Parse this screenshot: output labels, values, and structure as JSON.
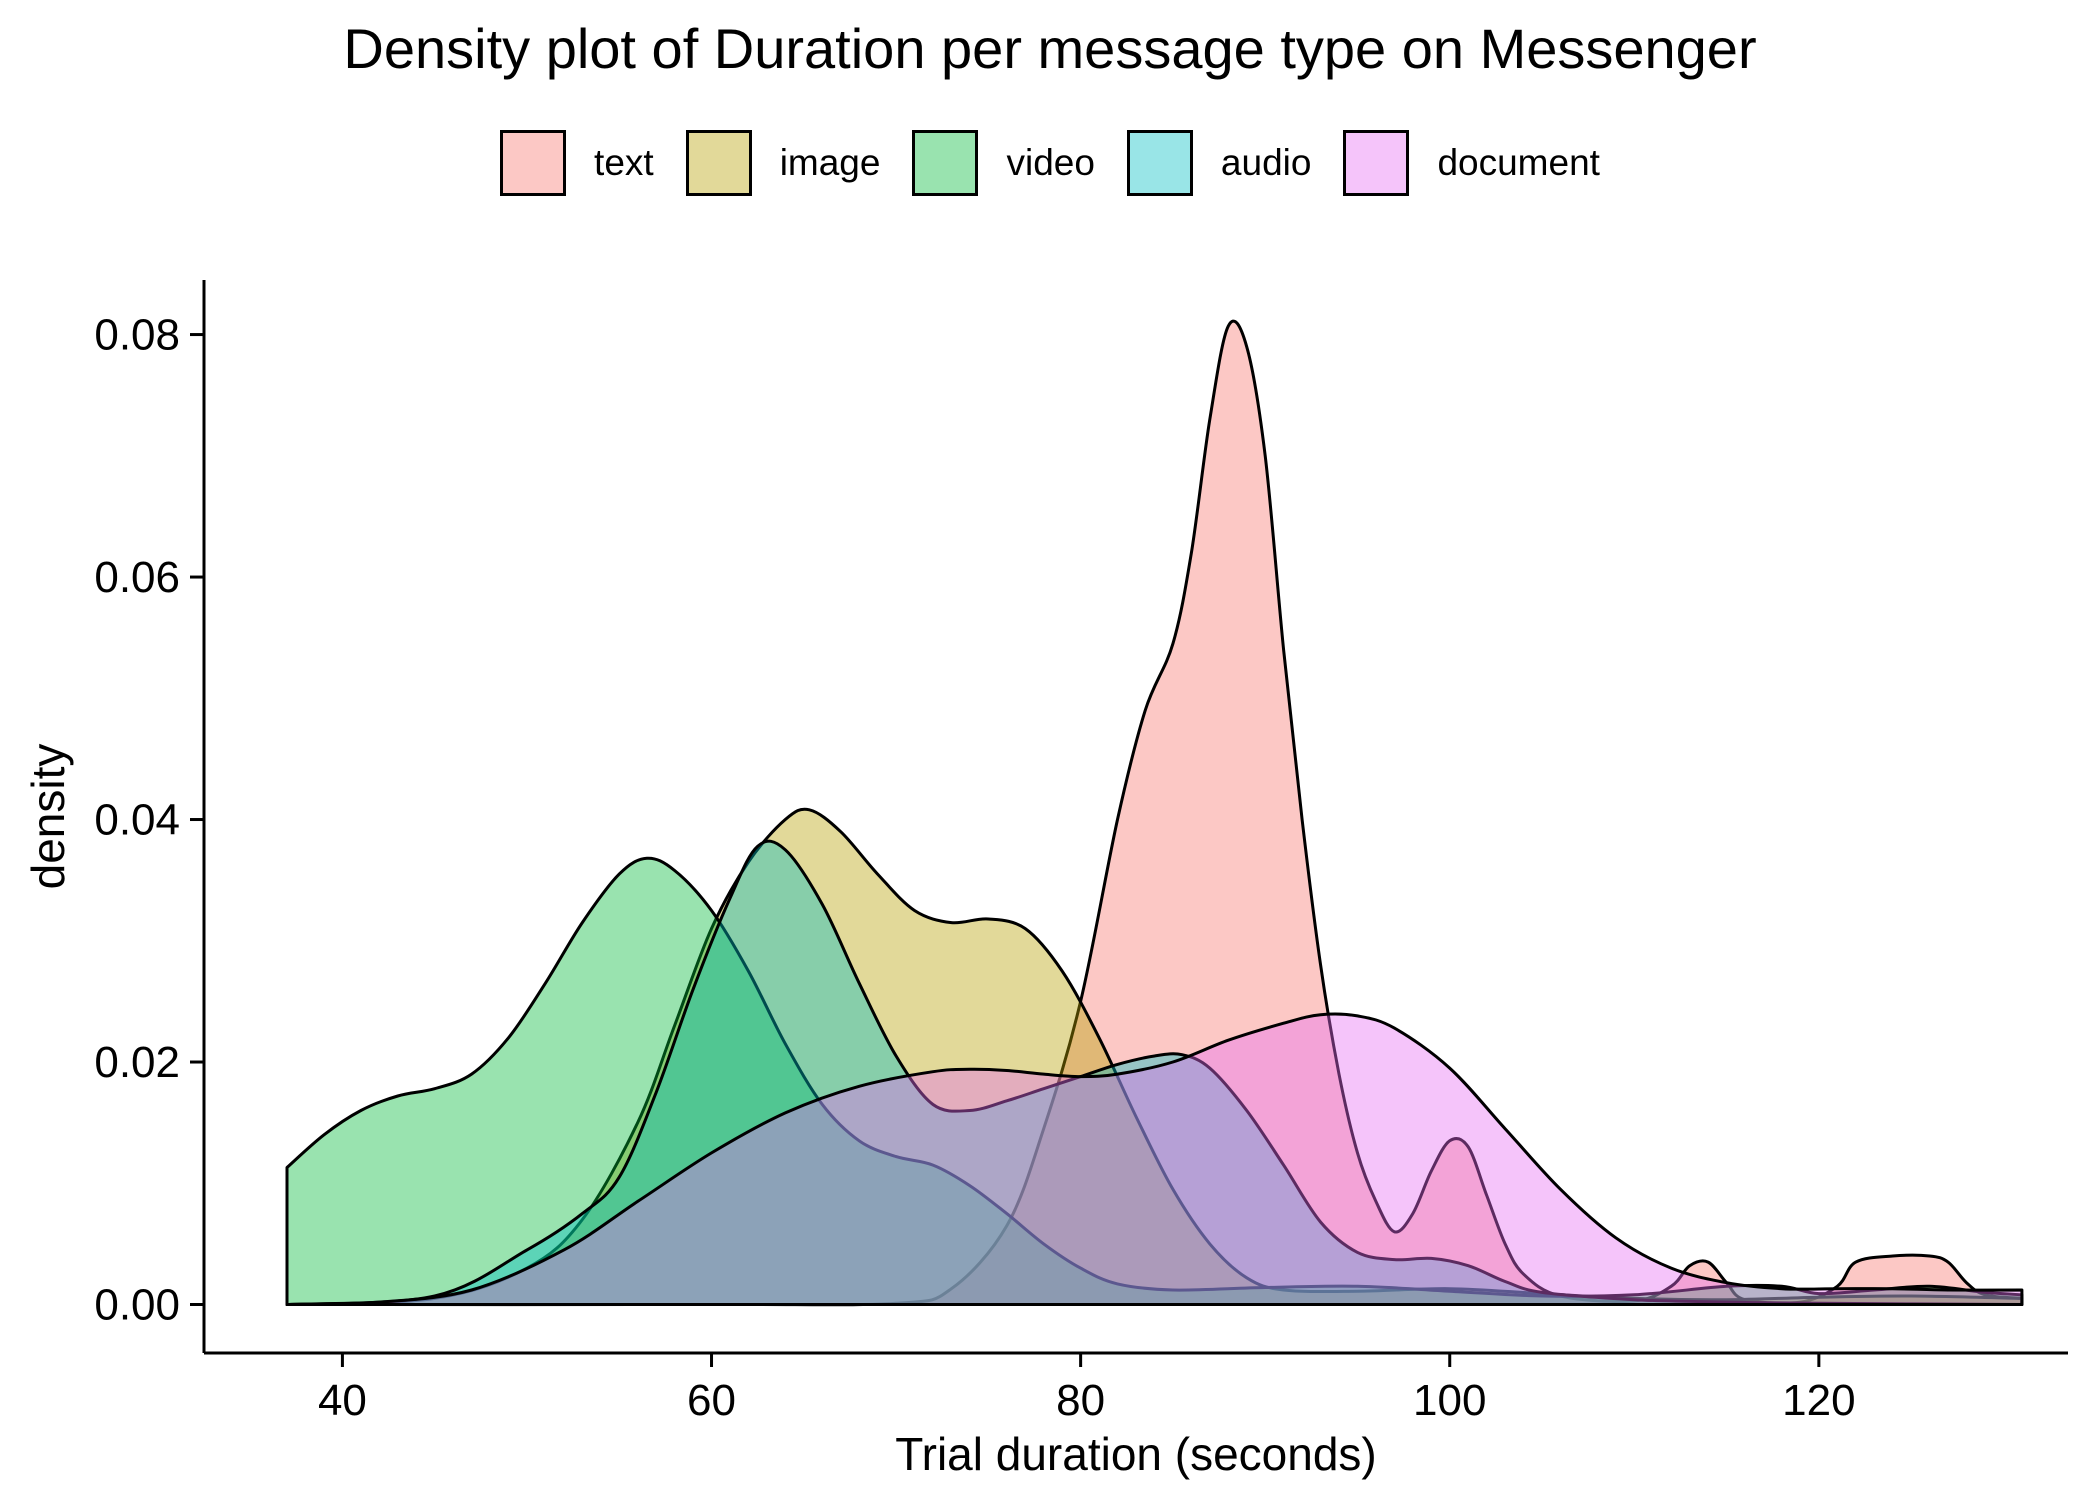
{
  "chart_data": {
    "type": "area",
    "title": "Density plot of Duration per message type on Messenger",
    "xlabel": "Trial duration (seconds)",
    "ylabel": "density",
    "xlim": [
      32.5,
      133.5
    ],
    "ylim": [
      -0.004,
      0.0845
    ],
    "x_ticks": [
      40,
      60,
      80,
      100,
      120
    ],
    "x_tick_labels": [
      "40",
      "60",
      "80",
      "100",
      "120"
    ],
    "y_ticks": [
      0,
      0.02,
      0.04,
      0.06,
      0.08
    ],
    "y_tick_labels": [
      "0.00",
      "0.02",
      "0.04",
      "0.06",
      "0.08"
    ],
    "grid": false,
    "legend_position": "top",
    "series": [
      {
        "name": "text",
        "color": "#F8766D",
        "points": [
          [
            37,
            0
          ],
          [
            60,
            0
          ],
          [
            70,
            0.0001
          ],
          [
            73,
            0.0013
          ],
          [
            76,
            0.0065
          ],
          [
            78,
            0.0145
          ],
          [
            80,
            0.025
          ],
          [
            82,
            0.04
          ],
          [
            83.5,
            0.049
          ],
          [
            85,
            0.0545
          ],
          [
            86,
            0.062
          ],
          [
            87,
            0.073
          ],
          [
            88,
            0.0807
          ],
          [
            89,
            0.079
          ],
          [
            90,
            0.07
          ],
          [
            91,
            0.054
          ],
          [
            92,
            0.04
          ],
          [
            93,
            0.028
          ],
          [
            94,
            0.019
          ],
          [
            95,
            0.0125
          ],
          [
            96,
            0.0085
          ],
          [
            97,
            0.006
          ],
          [
            98,
            0.0075
          ],
          [
            99,
            0.011
          ],
          [
            100,
            0.0135
          ],
          [
            101,
            0.013
          ],
          [
            102,
            0.009
          ],
          [
            103,
            0.005
          ],
          [
            104,
            0.0025
          ],
          [
            106,
            0.0007
          ],
          [
            110,
            0.0003
          ],
          [
            112,
            0.0015
          ],
          [
            113,
            0.0032
          ],
          [
            114,
            0.0035
          ],
          [
            115,
            0.0018
          ],
          [
            116,
            0.0004
          ],
          [
            119,
            0.0002
          ],
          [
            121,
            0.0015
          ],
          [
            122,
            0.0035
          ],
          [
            124,
            0.004
          ],
          [
            126,
            0.004
          ],
          [
            127,
            0.0035
          ],
          [
            128,
            0.0018
          ],
          [
            129,
            0.0008
          ],
          [
            131,
            0.0005
          ]
        ]
      },
      {
        "name": "image",
        "color": "#B79F00",
        "points": [
          [
            37,
            0
          ],
          [
            45,
            0.0005
          ],
          [
            50,
            0.003
          ],
          [
            53,
            0.007
          ],
          [
            56,
            0.015
          ],
          [
            58,
            0.023
          ],
          [
            60,
            0.031
          ],
          [
            62,
            0.0365
          ],
          [
            64,
            0.04
          ],
          [
            65.3,
            0.0408
          ],
          [
            67,
            0.039
          ],
          [
            69,
            0.0355
          ],
          [
            71,
            0.0325
          ],
          [
            73,
            0.0315
          ],
          [
            75,
            0.0318
          ],
          [
            77,
            0.031
          ],
          [
            79,
            0.0275
          ],
          [
            81,
            0.022
          ],
          [
            83,
            0.0155
          ],
          [
            85,
            0.0095
          ],
          [
            87,
            0.005
          ],
          [
            89,
            0.0022
          ],
          [
            91,
            0.0012
          ],
          [
            95,
            0.0011
          ],
          [
            100,
            0.0013
          ],
          [
            105,
            0.0009
          ],
          [
            110,
            0.0005
          ],
          [
            115,
            0.0004
          ],
          [
            120,
            0.0006
          ],
          [
            125,
            0.0007
          ],
          [
            131,
            0.0005
          ]
        ]
      },
      {
        "name": "video",
        "color": "#00BA38",
        "points": [
          [
            37,
            0.0113
          ],
          [
            39,
            0.014
          ],
          [
            41,
            0.016
          ],
          [
            43,
            0.0172
          ],
          [
            45,
            0.0178
          ],
          [
            47,
            0.019
          ],
          [
            49,
            0.022
          ],
          [
            51,
            0.0265
          ],
          [
            53,
            0.0315
          ],
          [
            55,
            0.0355
          ],
          [
            56.5,
            0.0368
          ],
          [
            58,
            0.0358
          ],
          [
            60,
            0.0325
          ],
          [
            62,
            0.0275
          ],
          [
            64,
            0.0215
          ],
          [
            66,
            0.0165
          ],
          [
            68,
            0.0135
          ],
          [
            70,
            0.0122
          ],
          [
            72,
            0.0115
          ],
          [
            74,
            0.0098
          ],
          [
            76,
            0.0075
          ],
          [
            78,
            0.005
          ],
          [
            80,
            0.003
          ],
          [
            82,
            0.0017
          ],
          [
            85,
            0.0012
          ],
          [
            90,
            0.0014
          ],
          [
            95,
            0.0015
          ],
          [
            100,
            0.0011
          ],
          [
            105,
            0.0007
          ],
          [
            110,
            0.0008
          ],
          [
            115,
            0.0015
          ],
          [
            118,
            0.0015
          ],
          [
            120,
            0.0009
          ],
          [
            123,
            0.0012
          ],
          [
            126,
            0.0015
          ],
          [
            129,
            0.001
          ],
          [
            131,
            0.0008
          ]
        ]
      },
      {
        "name": "audio",
        "color": "#00BFC4",
        "points": [
          [
            37,
            0
          ],
          [
            45,
            0.0007
          ],
          [
            50,
            0.0045
          ],
          [
            53,
            0.0075
          ],
          [
            55,
            0.0105
          ],
          [
            57,
            0.0175
          ],
          [
            59,
            0.026
          ],
          [
            61,
            0.0335
          ],
          [
            62.5,
            0.0378
          ],
          [
            64,
            0.0375
          ],
          [
            66,
            0.033
          ],
          [
            68,
            0.0265
          ],
          [
            70,
            0.0205
          ],
          [
            72,
            0.0165
          ],
          [
            74,
            0.016
          ],
          [
            76,
            0.0168
          ],
          [
            78,
            0.0178
          ],
          [
            80,
            0.0188
          ],
          [
            82,
            0.0198
          ],
          [
            84,
            0.0205
          ],
          [
            85.5,
            0.0206
          ],
          [
            87,
            0.0195
          ],
          [
            89,
            0.016
          ],
          [
            91,
            0.0115
          ],
          [
            93,
            0.0068
          ],
          [
            95,
            0.0043
          ],
          [
            97,
            0.0037
          ],
          [
            99,
            0.0038
          ],
          [
            101,
            0.0032
          ],
          [
            103,
            0.0019
          ],
          [
            105,
            0.001
          ],
          [
            110,
            0.0004
          ],
          [
            115,
            0.0002
          ],
          [
            120,
            0.0001
          ],
          [
            131,
            0
          ]
        ]
      },
      {
        "name": "document",
        "color": "#E76BF3",
        "points": [
          [
            37,
            0
          ],
          [
            42,
            0.0002
          ],
          [
            47,
            0.0012
          ],
          [
            52,
            0.0045
          ],
          [
            56,
            0.0085
          ],
          [
            60,
            0.0125
          ],
          [
            64,
            0.0158
          ],
          [
            68,
            0.018
          ],
          [
            72,
            0.0192
          ],
          [
            74,
            0.0194
          ],
          [
            76,
            0.0193
          ],
          [
            78,
            0.019
          ],
          [
            80,
            0.0188
          ],
          [
            82,
            0.019
          ],
          [
            85,
            0.02
          ],
          [
            88,
            0.0218
          ],
          [
            91,
            0.0232
          ],
          [
            93,
            0.0239
          ],
          [
            95,
            0.0238
          ],
          [
            97,
            0.0228
          ],
          [
            100,
            0.0195
          ],
          [
            103,
            0.0145
          ],
          [
            106,
            0.0095
          ],
          [
            109,
            0.0055
          ],
          [
            112,
            0.003
          ],
          [
            115,
            0.0018
          ],
          [
            118,
            0.0013
          ],
          [
            121,
            0.0013
          ],
          [
            124,
            0.0013
          ],
          [
            127,
            0.0012
          ],
          [
            131,
            0.0012
          ]
        ]
      }
    ]
  }
}
